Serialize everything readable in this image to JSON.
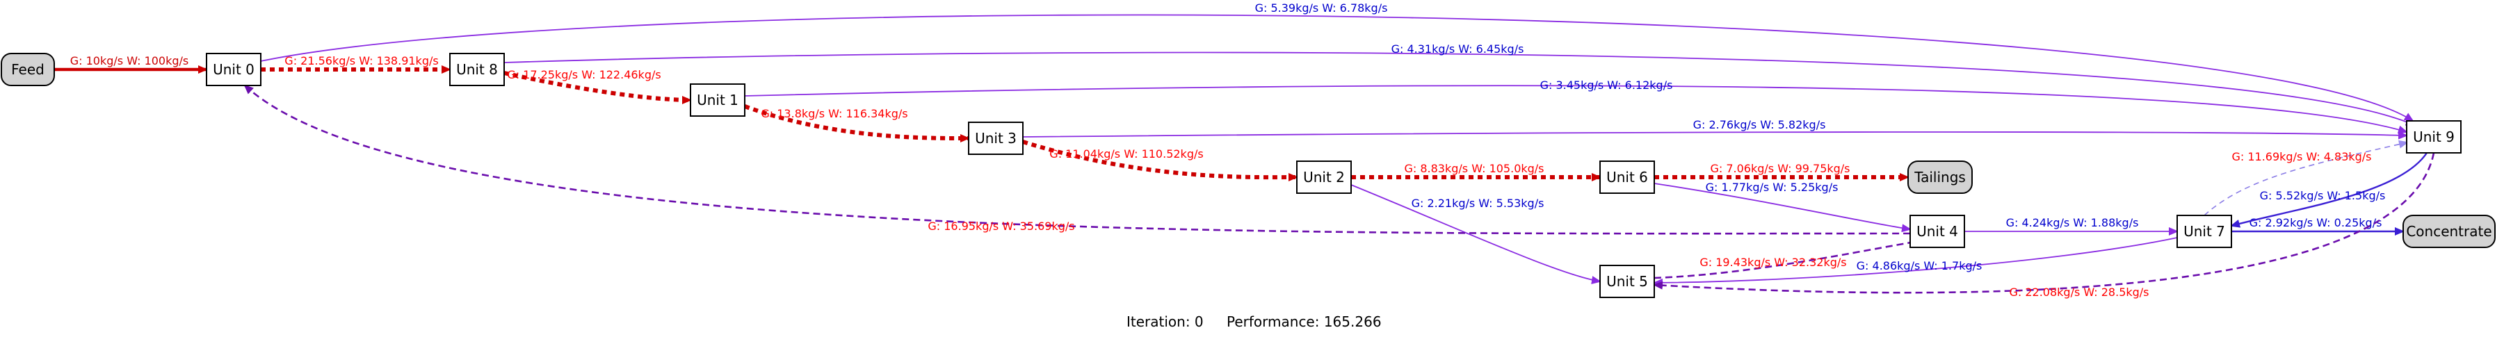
{
  "colors": {
    "feed_stream": "#cc0000",
    "concentrate_stream": "#8a2be2",
    "label_red": "#ff0000",
    "label_blue": "#0000cd",
    "node_fill": "#ffffff",
    "terminal_fill": "#d3d3d3"
  },
  "nodes": [
    {
      "id": "feed",
      "label": "Feed",
      "kind": "terminal"
    },
    {
      "id": "u0",
      "label": "Unit 0",
      "kind": "unit"
    },
    {
      "id": "u8",
      "label": "Unit 8",
      "kind": "unit"
    },
    {
      "id": "u1",
      "label": "Unit 1",
      "kind": "unit"
    },
    {
      "id": "u3",
      "label": "Unit 3",
      "kind": "unit"
    },
    {
      "id": "u2",
      "label": "Unit 2",
      "kind": "unit"
    },
    {
      "id": "u6",
      "label": "Unit 6",
      "kind": "unit"
    },
    {
      "id": "tailings",
      "label": "Tailings",
      "kind": "terminal"
    },
    {
      "id": "u4",
      "label": "Unit 4",
      "kind": "unit"
    },
    {
      "id": "u5",
      "label": "Unit 5",
      "kind": "unit"
    },
    {
      "id": "u7",
      "label": "Unit 7",
      "kind": "unit"
    },
    {
      "id": "u9",
      "label": "Unit 9",
      "kind": "unit"
    },
    {
      "id": "concentrate",
      "label": "Concentrate",
      "kind": "terminal"
    }
  ],
  "edges": [
    {
      "from": "feed",
      "to": "u0",
      "stream": "feed",
      "label": "G: 10kg/s  W: 100kg/s"
    },
    {
      "from": "u0",
      "to": "u8",
      "stream": "tailings",
      "label": "G: 21.56kg/s  W: 138.91kg/s"
    },
    {
      "from": "u0",
      "to": "u9",
      "stream": "concentrate",
      "label": "G: 5.39kg/s  W: 6.78kg/s"
    },
    {
      "from": "u8",
      "to": "u1",
      "stream": "tailings",
      "label": "G: 17.25kg/s  W: 122.46kg/s"
    },
    {
      "from": "u8",
      "to": "u9",
      "stream": "concentrate",
      "label": "G: 4.31kg/s  W: 6.45kg/s"
    },
    {
      "from": "u1",
      "to": "u3",
      "stream": "tailings",
      "label": "G: 13.8kg/s  W: 116.34kg/s"
    },
    {
      "from": "u1",
      "to": "u9",
      "stream": "concentrate",
      "label": "G: 3.45kg/s  W: 6.12kg/s"
    },
    {
      "from": "u3",
      "to": "u2",
      "stream": "tailings",
      "label": "G: 11.04kg/s  W: 110.52kg/s"
    },
    {
      "from": "u3",
      "to": "u9",
      "stream": "concentrate",
      "label": "G: 2.76kg/s  W: 5.82kg/s"
    },
    {
      "from": "u2",
      "to": "u6",
      "stream": "tailings",
      "label": "G: 8.83kg/s  W: 105.0kg/s"
    },
    {
      "from": "u2",
      "to": "u5",
      "stream": "concentrate",
      "label": "G: 2.21kg/s  W: 5.53kg/s"
    },
    {
      "from": "u6",
      "to": "tailings",
      "stream": "tailings",
      "label": "G: 7.06kg/s  W: 99.75kg/s"
    },
    {
      "from": "u6",
      "to": "u4",
      "stream": "concentrate",
      "label": "G: 1.77kg/s  W: 5.25kg/s"
    },
    {
      "from": "u4",
      "to": "u0",
      "stream": "recycle",
      "label": "G: 16.95kg/s  W: 35.69kg/s"
    },
    {
      "from": "u4",
      "to": "u7",
      "stream": "concentrate",
      "label": "G: 4.24kg/s  W: 1.88kg/s"
    },
    {
      "from": "u5",
      "to": "u4",
      "stream": "recycle",
      "label": "G: 19.43kg/s  W: 32.32kg/s"
    },
    {
      "from": "u7",
      "to": "u5",
      "stream": "concentrate",
      "label": "G: 4.86kg/s  W: 1.7kg/s"
    },
    {
      "from": "u7",
      "to": "u9",
      "stream": "recycle_light",
      "label": "G: 11.69kg/s  W: 4.83kg/s"
    },
    {
      "from": "u7",
      "to": "concentrate",
      "stream": "final",
      "label": "G: 2.92kg/s  W: 0.25kg/s"
    },
    {
      "from": "u9",
      "to": "u7",
      "stream": "final",
      "label": "G: 5.52kg/s  W: 1.5kg/s"
    },
    {
      "from": "u9",
      "to": "u5",
      "stream": "recycle",
      "label": "G: 22.08kg/s  W: 28.5kg/s"
    }
  ],
  "footer": {
    "iteration_label": "Iteration: 0",
    "performance_label": "Performance: 165.266"
  }
}
